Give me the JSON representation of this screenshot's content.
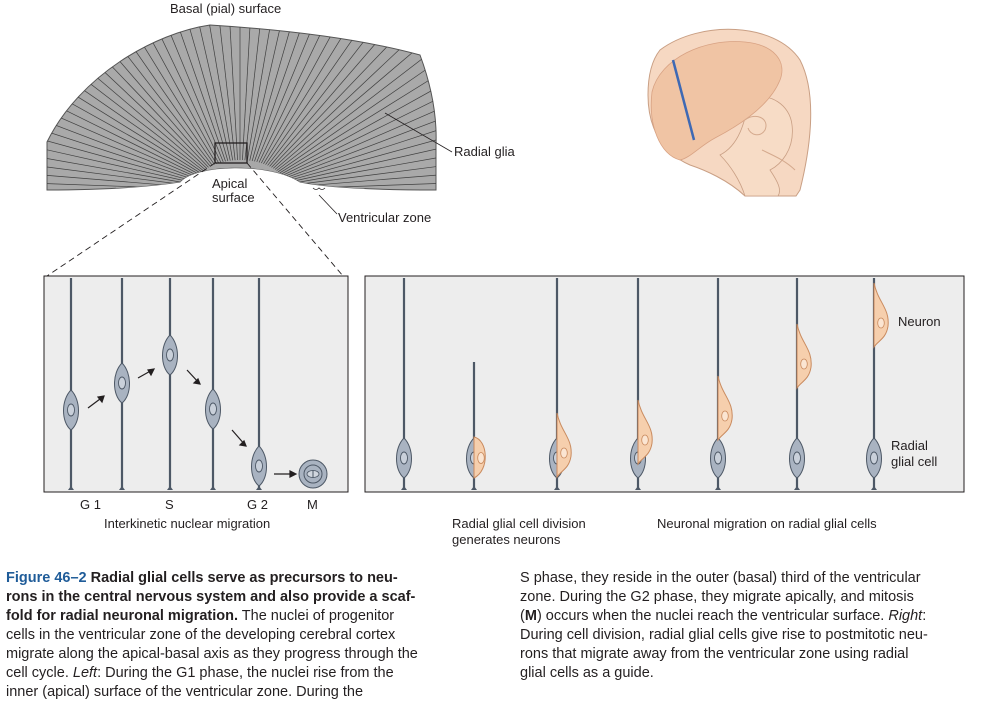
{
  "labels": {
    "basal_surface": "Basal (pial) surface",
    "radial_glia": "Radial glia",
    "apical_surface_1": "Apical",
    "apical_surface_2": "surface",
    "ventricular_zone": "Ventricular zone",
    "phase_g1": "G 1",
    "phase_s": "S",
    "phase_g2": "G 2",
    "phase_m": "M",
    "interkinetic": "Interkinetic nuclear migration",
    "division_1": "Radial glial cell division",
    "division_2": "generates neurons",
    "neuronal_migration": "Neuronal migration on radial glial cells",
    "neuron": "Neuron",
    "radial_glial_cell_1": "Radial",
    "radial_glial_cell_2": "glial cell"
  },
  "caption": {
    "figure_label": "Figure 46–2",
    "left_lines": [
      {
        "bold": " Radial glial cells serve as precursors to neu-"
      },
      {
        "bold": "rons in the central nervous system and also provide a scaf-"
      },
      {
        "bold": "fold for radial neuronal migration.",
        "text": " The nuclei of progenitor"
      },
      {
        "text": "cells in the ventricular zone of the developing cerebral cortex"
      },
      {
        "text": "migrate along the apical-basal axis as they progress through the"
      },
      {
        "text": "cell cycle. ",
        "italic": "Left",
        "rest": ": During the G1 phase, the nuclei rise from the"
      },
      {
        "text": "inner (apical) surface of the ventricular zone. During the"
      }
    ],
    "right_lines": [
      {
        "text": "S phase, they reside in the outer (basal) third of the ventricular"
      },
      {
        "text": "zone. During the G2 phase, they migrate apically, and mitosis"
      },
      {
        "text": "(",
        "bold": "M",
        "rest": ") occurs when the nuclei reach the ventricular surface. ",
        "italic": "Right",
        "rest2": ":"
      },
      {
        "text": "During cell division, radial glial cells give rise to postmitotic neu-"
      },
      {
        "text": "rons that migrate away from the ventricular zone using radial"
      },
      {
        "text": "glial cells as a guide."
      }
    ]
  },
  "colors": {
    "glia_fill": "#a9b3c1",
    "glia_stroke": "#4d5866",
    "neuron_fill": "#f6cfad",
    "neuron_stroke": "#c98a5e",
    "panel_bg": "#ededed",
    "brain_fill": "#f0c4a4",
    "head_fill": "#f7dcc6",
    "blue_line": "#3e69b4",
    "figure_label": "#1f5c99"
  }
}
